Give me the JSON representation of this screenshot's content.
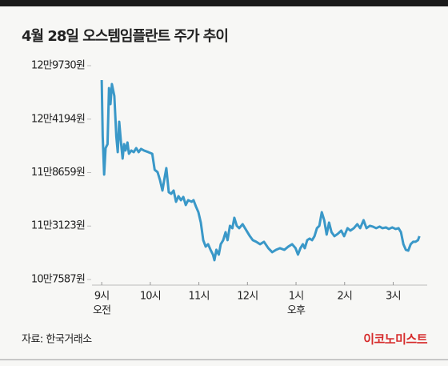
{
  "chart_data": {
    "type": "line",
    "title": "4월 28일 오스템임플란트 주가 추이",
    "source": "자료: 한국거래소",
    "publisher": "이코노미스트",
    "x": [
      9.0,
      9.02,
      9.05,
      9.08,
      9.12,
      9.15,
      9.18,
      9.21,
      9.26,
      9.3,
      9.33,
      9.36,
      9.4,
      9.43,
      9.46,
      9.49,
      9.53,
      9.56,
      9.61,
      9.66,
      9.71,
      9.76,
      9.81,
      9.87,
      9.96,
      10.04,
      10.09,
      10.15,
      10.2,
      10.25,
      10.3,
      10.33,
      10.38,
      10.43,
      10.48,
      10.53,
      10.58,
      10.63,
      10.68,
      10.73,
      10.78,
      10.85,
      10.89,
      10.94,
      10.99,
      11.04,
      11.09,
      11.14,
      11.19,
      11.24,
      11.29,
      11.32,
      11.36,
      11.41,
      11.45,
      11.5,
      11.55,
      11.59,
      11.64,
      11.69,
      11.73,
      11.78,
      11.83,
      11.9,
      11.95,
      12.0,
      12.05,
      12.11,
      12.18,
      12.26,
      12.34,
      12.43,
      12.51,
      12.59,
      12.67,
      12.76,
      12.84,
      12.92,
      12.99,
      13.04,
      13.09,
      13.14,
      13.18,
      13.23,
      13.28,
      13.33,
      13.38,
      13.43,
      13.48,
      13.53,
      13.58,
      13.63,
      13.68,
      13.73,
      13.79,
      13.86,
      13.93,
      13.99,
      14.06,
      14.12,
      14.19,
      14.26,
      14.32,
      14.39,
      14.45,
      14.52,
      14.58,
      14.65,
      14.72,
      14.78,
      14.85,
      14.91,
      14.98,
      15.05,
      15.11,
      15.16,
      15.21,
      15.26,
      15.31,
      15.36,
      15.41,
      15.46,
      15.51,
      15.54
    ],
    "values": [
      128238,
      122435,
      118456,
      121191,
      121606,
      127409,
      125751,
      127823,
      126580,
      122435,
      120777,
      123927,
      121606,
      120114,
      121606,
      120943,
      121772,
      120611,
      120943,
      120777,
      121191,
      120777,
      121108,
      120943,
      120777,
      120611,
      118953,
      118704,
      117875,
      116798,
      118290,
      119119,
      116632,
      116466,
      116798,
      115637,
      116217,
      115803,
      116134,
      115305,
      115803,
      115637,
      115803,
      115140,
      114559,
      113482,
      111658,
      110995,
      111243,
      110663,
      110166,
      109585,
      110663,
      110166,
      111243,
      111658,
      112487,
      111658,
      113150,
      112901,
      113979,
      113150,
      112901,
      113316,
      112901,
      112487,
      112072,
      111658,
      111492,
      111243,
      111492,
      110829,
      110414,
      110663,
      110829,
      110663,
      110995,
      111243,
      110829,
      110166,
      110829,
      111243,
      110829,
      111658,
      111824,
      111658,
      112072,
      112901,
      113150,
      114559,
      113730,
      112238,
      113482,
      112487,
      112072,
      112321,
      112653,
      112072,
      112901,
      112653,
      112901,
      113316,
      112901,
      113730,
      112901,
      113150,
      113067,
      112901,
      113067,
      112901,
      112984,
      112818,
      112984,
      112818,
      112901,
      112487,
      111243,
      110663,
      110580,
      111243,
      111492,
      111492,
      111658,
      112072
    ],
    "color": "#3a98c8",
    "xlim": [
      8.8,
      15.7
    ],
    "xticks": [
      {
        "value": 9,
        "label": "9시"
      },
      {
        "value": 10,
        "label": "10시"
      },
      {
        "value": 11,
        "label": "11시"
      },
      {
        "value": 12,
        "label": "12시"
      },
      {
        "value": 13,
        "label": "1시"
      },
      {
        "value": 14,
        "label": "2시"
      },
      {
        "value": 15,
        "label": "3시"
      }
    ],
    "x_sublabels": [
      {
        "value": 9,
        "label": "오전"
      },
      {
        "value": 13,
        "label": "오후"
      }
    ],
    "ylim": [
      107587,
      129730
    ],
    "yticks": [
      {
        "value": 129730,
        "label": "12만9730원"
      },
      {
        "value": 124194,
        "label": "12만4194원"
      },
      {
        "value": 118659,
        "label": "11만8659원"
      },
      {
        "value": 113123,
        "label": "11만3123원"
      },
      {
        "value": 107587,
        "label": "10만7587원"
      }
    ]
  }
}
